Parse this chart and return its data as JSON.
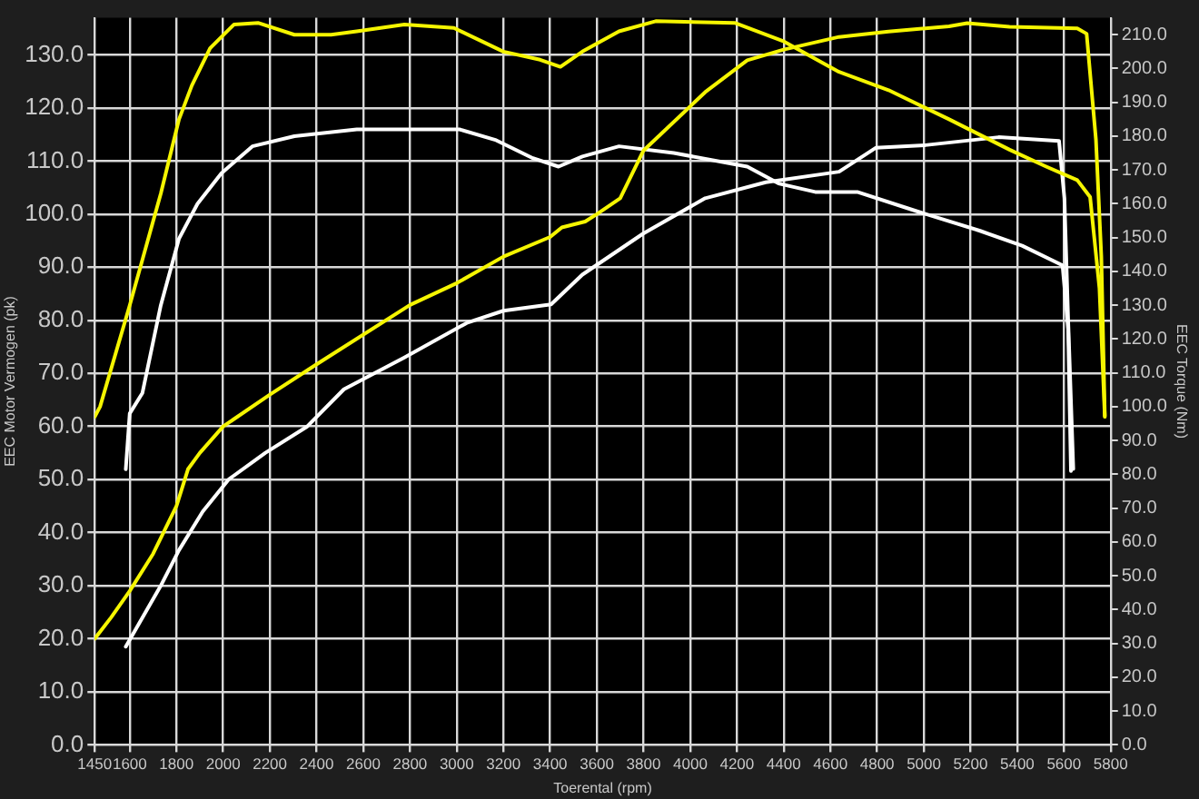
{
  "chart_data": {
    "type": "line",
    "xlabel": "Toerental (rpm)",
    "ylabel": "EEC Motor Vermogen (pk)",
    "y2label": "EEC Torque (Nm)",
    "xlim": [
      1450,
      5800
    ],
    "xticks": [
      1450,
      1600,
      1800,
      2000,
      2200,
      2400,
      2600,
      2800,
      3000,
      3200,
      3400,
      3600,
      3800,
      4000,
      4200,
      4400,
      4600,
      4800,
      5000,
      5200,
      5400,
      5600,
      5800
    ],
    "ylim": [
      0,
      137
    ],
    "yticks": [
      {
        "value": 0,
        "label": "0.0"
      },
      {
        "value": 10,
        "label": "10.0"
      },
      {
        "value": 20,
        "label": "20.0"
      },
      {
        "value": 30,
        "label": "30.0"
      },
      {
        "value": 40,
        "label": "40.0"
      },
      {
        "value": 50,
        "label": "50.0"
      },
      {
        "value": 60,
        "label": "60.0"
      },
      {
        "value": 70,
        "label": "70.0"
      },
      {
        "value": 80,
        "label": "80.0"
      },
      {
        "value": 90,
        "label": "90.0"
      },
      {
        "value": 100,
        "label": "100.0"
      },
      {
        "value": 110,
        "label": "110.0"
      },
      {
        "value": 120,
        "label": "120.0"
      },
      {
        "value": 130,
        "label": "130.0"
      }
    ],
    "y2lim": [
      0,
      215
    ],
    "y2ticks": [
      {
        "value": 0,
        "label": "0.0"
      },
      {
        "value": 10,
        "label": "10.0"
      },
      {
        "value": 20,
        "label": "20.0"
      },
      {
        "value": 30,
        "label": "30.0"
      },
      {
        "value": 40,
        "label": "40.0"
      },
      {
        "value": 50,
        "label": "50.0"
      },
      {
        "value": 60,
        "label": "60.0"
      },
      {
        "value": 70,
        "label": "70.0"
      },
      {
        "value": 80,
        "label": "80.0"
      },
      {
        "value": 90,
        "label": "90.0"
      },
      {
        "value": 100,
        "label": "100.0"
      },
      {
        "value": 110,
        "label": "110.0"
      },
      {
        "value": 120,
        "label": "120.0"
      },
      {
        "value": 130,
        "label": "130.0"
      },
      {
        "value": 140,
        "label": "140.0"
      },
      {
        "value": 150,
        "label": "150.0"
      },
      {
        "value": 160,
        "label": "160.0"
      },
      {
        "value": 170,
        "label": "170.0"
      },
      {
        "value": 180,
        "label": "180.0"
      },
      {
        "value": 190,
        "label": "190.0"
      },
      {
        "value": 200,
        "label": "200.0"
      },
      {
        "value": 210,
        "label": "210.0"
      }
    ],
    "grid": true,
    "legend": false,
    "marker": "none",
    "line_style": "solid",
    "series": [
      {
        "color": "#f5f500",
        "axis": "y",
        "x": [
          1450,
          1520,
          1600,
          1700,
          1800,
          1850,
          1900,
          2000,
          2200,
          2400,
          2800,
          3000,
          3200,
          3400,
          3450,
          3550,
          3600,
          3700,
          3800,
          4064,
          4244,
          4400,
          4637,
          4849,
          5108,
          5186,
          5367,
          5657,
          5697,
          5737,
          5760,
          5775
        ],
        "values": [
          20,
          24,
          29,
          36,
          45,
          52,
          55,
          60,
          66,
          71.7,
          82.9,
          87,
          92,
          95.7,
          97.5,
          98.6,
          100,
          103,
          112,
          123,
          129,
          131,
          133.4,
          134.4,
          135.4,
          136,
          135.3,
          135,
          134,
          114,
          92,
          62
        ]
      },
      {
        "color": "#f5f500",
        "axis": "y2",
        "x": [
          1450,
          1473,
          1600,
          1733,
          1811,
          1866,
          1944,
          2046,
          2149,
          2305,
          2462,
          2572,
          2776,
          2988,
          3200,
          3357,
          3444,
          3538,
          3695,
          3852,
          4190,
          4401,
          4637,
          4849,
          5108,
          5367,
          5524,
          5657,
          5712,
          5752,
          5775
        ],
        "values": [
          97,
          100,
          130,
          163,
          185,
          195,
          206,
          213,
          213.5,
          210,
          210,
          211,
          213,
          212,
          205,
          202.6,
          200.5,
          205,
          211,
          214,
          213.5,
          208,
          199,
          193.6,
          185,
          176,
          171,
          167,
          162,
          135,
          97
        ]
      },
      {
        "color": "#ffffff",
        "axis": "y",
        "x": [
          1583,
          1733,
          1811,
          1913,
          2023,
          2180,
          2360,
          2517,
          2776,
          3043,
          3200,
          3404,
          3538,
          3797,
          4064,
          4323,
          4637,
          4794,
          5006,
          5320,
          5579,
          5602,
          5618,
          5640
        ],
        "values": [
          18.5,
          30,
          36.7,
          44,
          50,
          55,
          60,
          67,
          73,
          79.5,
          81.8,
          83,
          88.6,
          96.3,
          103,
          106,
          108,
          112.5,
          113,
          114.5,
          113.8,
          103,
          80,
          52
        ]
      },
      {
        "color": "#ffffff",
        "axis": "y2",
        "x": [
          1583,
          1600,
          1654,
          1733,
          1811,
          1890,
          1992,
          2125,
          2305,
          2572,
          2776,
          3012,
          3169,
          3326,
          3436,
          3538,
          3695,
          3930,
          4244,
          4378,
          4535,
          4715,
          4974,
          5241,
          5421,
          5594,
          5618,
          5630
        ],
        "values": [
          81.5,
          98,
          104,
          130,
          149.7,
          160,
          169,
          177,
          180,
          182,
          182,
          182,
          178.8,
          173.5,
          171,
          174,
          177,
          175,
          171,
          166,
          163.5,
          163.5,
          157.7,
          152,
          147.6,
          141.8,
          123,
          81
        ]
      }
    ]
  }
}
